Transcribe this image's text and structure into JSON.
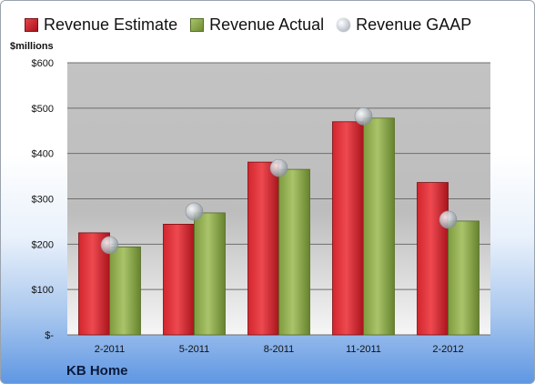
{
  "legend": {
    "estimate": "Revenue Estimate",
    "actual": "Revenue Actual",
    "gaap": "Revenue GAAP"
  },
  "unit_label": "$millions",
  "company_label": "KB Home",
  "colors": {
    "estimate": "#c41f26",
    "actual": "#8aa64a",
    "gaap": "#b8c0c8"
  },
  "chart_data": {
    "type": "bar",
    "categories": [
      "2-2011",
      "5-2011",
      "8-2011",
      "11-2011",
      "2-2012"
    ],
    "series": [
      {
        "name": "Revenue Estimate",
        "values": [
          225,
          244,
          381,
          470,
          336
        ]
      },
      {
        "name": "Revenue Actual",
        "values": [
          194,
          269,
          365,
          478,
          251
        ]
      },
      {
        "name": "Revenue GAAP",
        "values": [
          198,
          272,
          368,
          482,
          254
        ]
      }
    ],
    "yticks": [
      "$-",
      "$100",
      "$200",
      "$300",
      "$400",
      "$500",
      "$600"
    ],
    "ylim": [
      0,
      600
    ],
    "grid": true,
    "legend_position": "top"
  }
}
